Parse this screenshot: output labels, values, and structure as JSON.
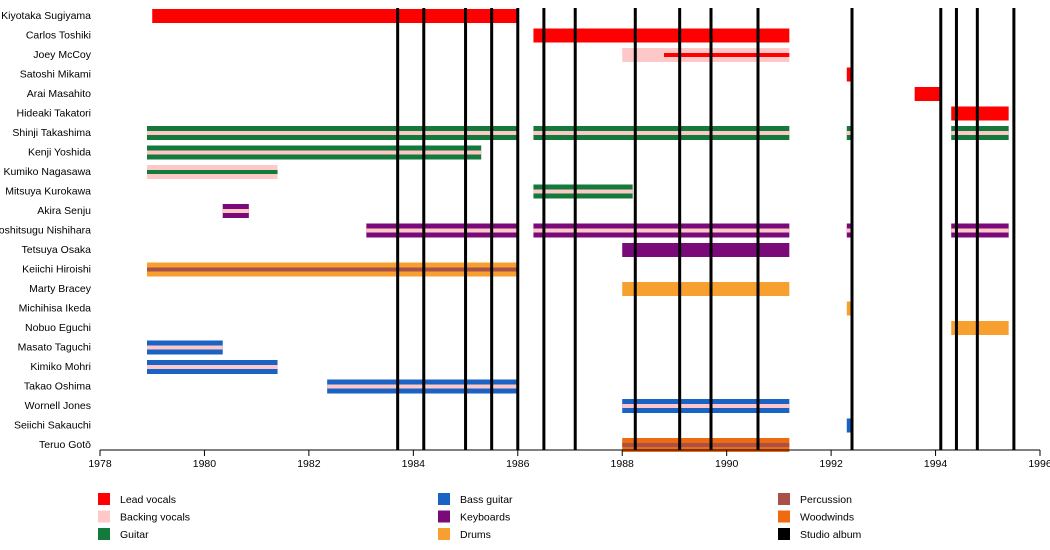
{
  "chart_data": {
    "type": "timeline",
    "xlim": [
      1978,
      1996
    ],
    "xticks": [
      1978,
      1980,
      1982,
      1984,
      1986,
      1988,
      1990,
      1992,
      1994,
      1996
    ],
    "roles": [
      {
        "name": "Lead vocals",
        "color": "#ff0000"
      },
      {
        "name": "Backing vocals",
        "color": "#ffc8c8"
      },
      {
        "name": "Guitar",
        "color": "#137a3c"
      },
      {
        "name": "Bass guitar",
        "color": "#1a62c4"
      },
      {
        "name": "Keyboards",
        "color": "#7a0a7a"
      },
      {
        "name": "Drums",
        "color": "#f7a030"
      },
      {
        "name": "Percussion",
        "color": "#a8504a"
      },
      {
        "name": "Woodwinds",
        "color": "#f06a10"
      }
    ],
    "albums": {
      "name": "Studio album",
      "color": "#000000",
      "x": [
        1983.7,
        1984.2,
        1985.0,
        1985.5,
        1986.0,
        1986.5,
        1987.1,
        1988.25,
        1989.1,
        1989.7,
        1990.6,
        1992.4,
        1994.1,
        1994.4,
        1994.8,
        1995.5
      ]
    },
    "members": [
      {
        "name": "Kiyotaka Sugiyama",
        "bars": [
          {
            "start": 1979.0,
            "end": 1986.0,
            "role": 0
          }
        ]
      },
      {
        "name": "Carlos Toshiki",
        "bars": [
          {
            "start": 1986.3,
            "end": 1991.2,
            "role": 0
          }
        ]
      },
      {
        "name": "Joey McCoy",
        "bars": [
          {
            "start": 1988.0,
            "end": 1991.2,
            "role": 1
          },
          {
            "start": 1988.8,
            "end": 1991.2,
            "role": 0,
            "secondary": true
          }
        ]
      },
      {
        "name": "Satoshi Mikami",
        "bars": [
          {
            "start": 1992.3,
            "end": 1992.4,
            "role": 0
          }
        ]
      },
      {
        "name": "Arai Masahito",
        "bars": [
          {
            "start": 1993.6,
            "end": 1994.1,
            "role": 0
          }
        ]
      },
      {
        "name": "Hideaki Takatori",
        "bars": [
          {
            "start": 1994.3,
            "end": 1995.4,
            "role": 0
          }
        ]
      },
      {
        "name": "Shinji Takashima",
        "bars": [
          {
            "start": 1978.9,
            "end": 1986.0,
            "role": 2
          },
          {
            "start": 1978.9,
            "end": 1986.0,
            "role": 1,
            "secondary": true
          },
          {
            "start": 1986.3,
            "end": 1991.2,
            "role": 2
          },
          {
            "start": 1986.3,
            "end": 1991.2,
            "role": 1,
            "secondary": true
          },
          {
            "start": 1992.3,
            "end": 1992.4,
            "role": 2
          },
          {
            "start": 1992.3,
            "end": 1992.4,
            "role": 1,
            "secondary": true
          },
          {
            "start": 1994.3,
            "end": 1995.4,
            "role": 2
          },
          {
            "start": 1994.3,
            "end": 1995.4,
            "role": 1,
            "secondary": true
          }
        ]
      },
      {
        "name": "Kenji Yoshida",
        "bars": [
          {
            "start": 1978.9,
            "end": 1985.3,
            "role": 2
          },
          {
            "start": 1978.9,
            "end": 1985.3,
            "role": 1,
            "secondary": true
          }
        ]
      },
      {
        "name": "Kumiko Nagasawa",
        "bars": [
          {
            "start": 1978.9,
            "end": 1981.4,
            "role": 1
          },
          {
            "start": 1978.9,
            "end": 1981.4,
            "role": 2,
            "secondary": true
          }
        ]
      },
      {
        "name": "Mitsuya Kurokawa",
        "bars": [
          {
            "start": 1986.3,
            "end": 1988.2,
            "role": 2
          },
          {
            "start": 1986.3,
            "end": 1988.2,
            "role": 1,
            "secondary": true
          }
        ]
      },
      {
        "name": "Akira Senju",
        "bars": [
          {
            "start": 1980.35,
            "end": 1980.85,
            "role": 4
          },
          {
            "start": 1980.35,
            "end": 1980.85,
            "role": 1,
            "secondary": true
          }
        ]
      },
      {
        "name": "Toshitsugu Nishihara",
        "bars": [
          {
            "start": 1983.1,
            "end": 1986.0,
            "role": 4
          },
          {
            "start": 1983.1,
            "end": 1986.0,
            "role": 1,
            "secondary": true
          },
          {
            "start": 1986.3,
            "end": 1991.2,
            "role": 4
          },
          {
            "start": 1986.3,
            "end": 1991.2,
            "role": 1,
            "secondary": true
          },
          {
            "start": 1992.3,
            "end": 1992.4,
            "role": 4
          },
          {
            "start": 1992.3,
            "end": 1992.4,
            "role": 1,
            "secondary": true
          },
          {
            "start": 1994.3,
            "end": 1995.4,
            "role": 4
          },
          {
            "start": 1994.3,
            "end": 1995.4,
            "role": 1,
            "secondary": true
          }
        ]
      },
      {
        "name": "Tetsuya Osaka",
        "bars": [
          {
            "start": 1988.0,
            "end": 1991.2,
            "role": 4
          }
        ]
      },
      {
        "name": "Keiichi Hiroishi",
        "bars": [
          {
            "start": 1978.9,
            "end": 1986.0,
            "role": 5
          },
          {
            "start": 1978.9,
            "end": 1986.0,
            "role": 6,
            "secondary": true
          }
        ]
      },
      {
        "name": "Marty Bracey",
        "bars": [
          {
            "start": 1988.0,
            "end": 1991.2,
            "role": 5
          }
        ]
      },
      {
        "name": "Michihisa Ikeda",
        "bars": [
          {
            "start": 1992.3,
            "end": 1992.4,
            "role": 5
          }
        ]
      },
      {
        "name": "Nobuo Eguchi",
        "bars": [
          {
            "start": 1994.3,
            "end": 1995.4,
            "role": 5
          }
        ]
      },
      {
        "name": "Masato Taguchi",
        "bars": [
          {
            "start": 1978.9,
            "end": 1980.35,
            "role": 3
          },
          {
            "start": 1978.9,
            "end": 1980.35,
            "role": 1,
            "secondary": true
          }
        ]
      },
      {
        "name": "Kimiko Mohri",
        "bars": [
          {
            "start": 1978.9,
            "end": 1981.4,
            "role": 3
          },
          {
            "start": 1978.9,
            "end": 1981.4,
            "role": 1,
            "secondary": true
          }
        ]
      },
      {
        "name": "Takao Oshima",
        "bars": [
          {
            "start": 1982.35,
            "end": 1986.0,
            "role": 3
          },
          {
            "start": 1982.35,
            "end": 1986.0,
            "role": 1,
            "secondary": true
          }
        ]
      },
      {
        "name": "Wornell Jones",
        "bars": [
          {
            "start": 1988.0,
            "end": 1991.2,
            "role": 3
          },
          {
            "start": 1988.0,
            "end": 1991.2,
            "role": 1,
            "secondary": true
          }
        ]
      },
      {
        "name": "Seiichi Sakauchi",
        "bars": [
          {
            "start": 1992.3,
            "end": 1992.4,
            "role": 3
          }
        ]
      },
      {
        "name": "Teruo Gotō",
        "bars": [
          {
            "start": 1988.0,
            "end": 1991.2,
            "role": 7
          },
          {
            "start": 1988.0,
            "end": 1991.2,
            "role": 6,
            "secondary": true
          }
        ]
      }
    ]
  }
}
